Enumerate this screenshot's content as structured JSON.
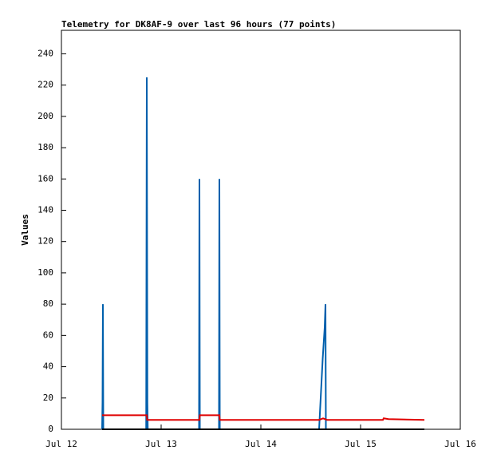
{
  "chart_data": {
    "type": "line",
    "title": "Telemetry for DK8AF-9 over last 96 hours (77 points)",
    "ylabel": "Values",
    "xlim": [
      0,
      4
    ],
    "xticks": [
      {
        "value": 0,
        "label": "Jul 12"
      },
      {
        "value": 1,
        "label": "Jul 13"
      },
      {
        "value": 2,
        "label": "Jul 14"
      },
      {
        "value": 3,
        "label": "Jul 15"
      },
      {
        "value": 4,
        "label": "Jul 16"
      }
    ],
    "ylim": [
      0,
      255
    ],
    "yticks": [
      0,
      20,
      40,
      60,
      80,
      100,
      120,
      140,
      160,
      180,
      200,
      220,
      240
    ],
    "series": [
      {
        "color": "#0060ad",
        "x": [
          0.408,
          0.412,
          0.416,
          0.42,
          0.85,
          0.856,
          0.862,
          0.866,
          1.38,
          1.384,
          1.388,
          1.58,
          1.584,
          1.588,
          2.584,
          2.6,
          2.62,
          2.64,
          2.648,
          2.652
        ],
        "values": [
          0,
          17,
          80,
          0,
          0,
          225,
          17,
          0,
          0,
          160,
          0,
          0,
          160,
          0,
          0,
          20,
          45,
          65,
          80,
          0
        ]
      },
      {
        "color": "#e00000",
        "x": [
          0.408,
          0.856,
          0.86,
          1.384,
          1.388,
          1.584,
          1.588,
          2.584,
          2.624,
          2.664,
          3.224,
          3.232,
          3.28,
          3.64
        ],
        "values": [
          9,
          9,
          6,
          6,
          9,
          9,
          6,
          6,
          7,
          6,
          6,
          7,
          6.5,
          6
        ]
      },
      {
        "color": "#000000",
        "x": [
          0.408,
          3.64
        ],
        "values": [
          0,
          0
        ]
      }
    ]
  }
}
